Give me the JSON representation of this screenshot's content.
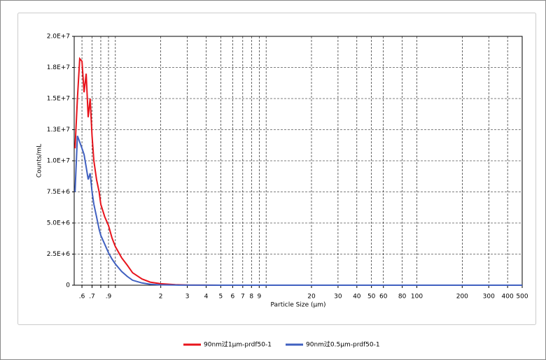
{
  "chart_data": {
    "type": "line",
    "xlabel": "Particle Size (µm)",
    "ylabel": "Counts/mL",
    "xscale": "log",
    "grid": true,
    "legend": "bottom",
    "x": [
      0.54,
      0.56,
      0.58,
      0.6,
      0.62,
      0.64,
      0.66,
      0.68,
      0.7,
      0.72,
      0.75,
      0.78,
      0.8,
      0.85,
      0.9,
      0.95,
      1.0,
      1.1,
      1.2,
      1.3,
      1.5,
      1.7,
      2,
      2.5,
      3,
      5,
      10,
      50,
      100,
      500
    ],
    "series": [
      {
        "name": "90nm过1µm-prdf50-1",
        "color": "#e8141c",
        "values": [
          11000000,
          15000000,
          18200000,
          18000000,
          15500000,
          17000000,
          13500000,
          15000000,
          12000000,
          10000000,
          8500000,
          7500000,
          6500000,
          5500000,
          4800000,
          3800000,
          3100000,
          2200000,
          1600000,
          1000000,
          500000,
          250000,
          120000,
          40000,
          10000,
          0,
          0,
          0,
          0,
          0
        ]
      },
      {
        "name": "90nm过0.5µm-prdf50-1",
        "color": "#4060c0",
        "values": [
          7500000,
          12000000,
          11500000,
          11000000,
          10500000,
          9500000,
          8500000,
          9000000,
          7500000,
          6500000,
          5500000,
          4500000,
          4000000,
          3300000,
          2600000,
          2100000,
          1700000,
          1100000,
          700000,
          400000,
          180000,
          80000,
          30000,
          10000,
          3000,
          0,
          0,
          0,
          0,
          0
        ]
      }
    ],
    "xlim": [
      0.533,
      500
    ],
    "xticks": [
      {
        "value": 0.6,
        "label": ".6"
      },
      {
        "value": 0.7,
        "label": ".7"
      },
      {
        "value": 0.8,
        "label": null
      },
      {
        "value": 0.9,
        "label": ".9"
      },
      {
        "value": 1,
        "label": null
      },
      2,
      3,
      4,
      5,
      6,
      7,
      8,
      9,
      {
        "value": 10,
        "label": null
      },
      20,
      30,
      40,
      50,
      60,
      80,
      100,
      200,
      300,
      400,
      500
    ],
    "ylim": [
      0,
      20000000
    ],
    "yticks": [
      0,
      {
        "value": 2500000,
        "label": "2.5E+6"
      },
      {
        "value": 5000000,
        "label": "5.0E+6"
      },
      {
        "value": 7500000,
        "label": "7.5E+6"
      },
      {
        "value": 10000000,
        "label": "1.0E+7"
      },
      {
        "value": 12500000,
        "label": "1.3E+7"
      },
      {
        "value": 15000000,
        "label": "1.5E+7"
      },
      {
        "value": 17500000,
        "label": "1.8E+7"
      },
      {
        "value": 20000000,
        "label": "2.0E+7"
      }
    ]
  }
}
